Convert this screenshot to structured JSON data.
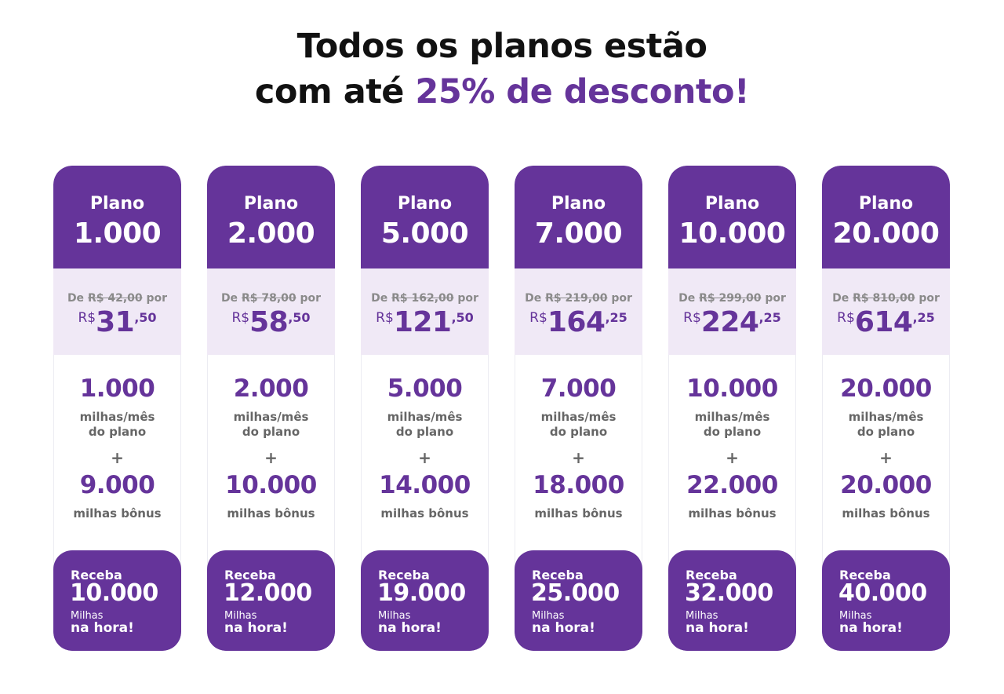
{
  "headline": {
    "line1": "Todos os planos estão",
    "line2_prefix": "com até ",
    "line2_accent": "25% de desconto!"
  },
  "colors": {
    "brand_purple": "#65349a",
    "band_lavender": "#f0e9f6",
    "muted_text": "#666666"
  },
  "plans": [
    {
      "label": "Plano",
      "number": "1.000",
      "old_prefix": "De ",
      "old_price": "R$ 42,00",
      "old_suffix": " por",
      "currency": "R$",
      "price_int": "31",
      "price_cents": ",50",
      "plan_miles": "1.000",
      "plan_miles_sub1": "milhas/mês",
      "plan_miles_sub2": "do plano",
      "plus": "+",
      "bonus_miles": "9.000",
      "bonus_sub": "milhas bônus",
      "receive_label": "Receba",
      "receive_total": "10.000",
      "receive_unit": "Milhas",
      "receive_when": "na hora!"
    },
    {
      "label": "Plano",
      "number": "2.000",
      "old_prefix": "De ",
      "old_price": "R$ 78,00",
      "old_suffix": " por",
      "currency": "R$",
      "price_int": "58",
      "price_cents": ",50",
      "plan_miles": "2.000",
      "plan_miles_sub1": "milhas/mês",
      "plan_miles_sub2": "do plano",
      "plus": "+",
      "bonus_miles": "10.000",
      "bonus_sub": "milhas bônus",
      "receive_label": "Receba",
      "receive_total": "12.000",
      "receive_unit": "Milhas",
      "receive_when": "na hora!"
    },
    {
      "label": "Plano",
      "number": "5.000",
      "old_prefix": "De ",
      "old_price": "R$ 162,00",
      "old_suffix": " por",
      "currency": "R$",
      "price_int": "121",
      "price_cents": ",50",
      "plan_miles": "5.000",
      "plan_miles_sub1": "milhas/mês",
      "plan_miles_sub2": "do plano",
      "plus": "+",
      "bonus_miles": "14.000",
      "bonus_sub": "milhas bônus",
      "receive_label": "Receba",
      "receive_total": "19.000",
      "receive_unit": "Milhas",
      "receive_when": "na hora!"
    },
    {
      "label": "Plano",
      "number": "7.000",
      "old_prefix": "De ",
      "old_price": "R$ 219,00",
      "old_suffix": " por",
      "currency": "R$",
      "price_int": "164",
      "price_cents": ",25",
      "plan_miles": "7.000",
      "plan_miles_sub1": "milhas/mês",
      "plan_miles_sub2": "do plano",
      "plus": "+",
      "bonus_miles": "18.000",
      "bonus_sub": "milhas bônus",
      "receive_label": "Receba",
      "receive_total": "25.000",
      "receive_unit": "Milhas",
      "receive_when": "na hora!"
    },
    {
      "label": "Plano",
      "number": "10.000",
      "old_prefix": "De ",
      "old_price": "R$ 299,00",
      "old_suffix": " por",
      "currency": "R$",
      "price_int": "224",
      "price_cents": ",25",
      "plan_miles": "10.000",
      "plan_miles_sub1": "milhas/mês",
      "plan_miles_sub2": "do plano",
      "plus": "+",
      "bonus_miles": "22.000",
      "bonus_sub": "milhas bônus",
      "receive_label": "Receba",
      "receive_total": "32.000",
      "receive_unit": "Milhas",
      "receive_when": "na hora!"
    },
    {
      "label": "Plano",
      "number": "20.000",
      "old_prefix": "De ",
      "old_price": "R$ 810,00",
      "old_suffix": " por",
      "currency": "R$",
      "price_int": "614",
      "price_cents": ",25",
      "plan_miles": "20.000",
      "plan_miles_sub1": "milhas/mês",
      "plan_miles_sub2": "do plano",
      "plus": "+",
      "bonus_miles": "20.000",
      "bonus_sub": "milhas bônus",
      "receive_label": "Receba",
      "receive_total": "40.000",
      "receive_unit": "Milhas",
      "receive_when": "na hora!"
    }
  ]
}
